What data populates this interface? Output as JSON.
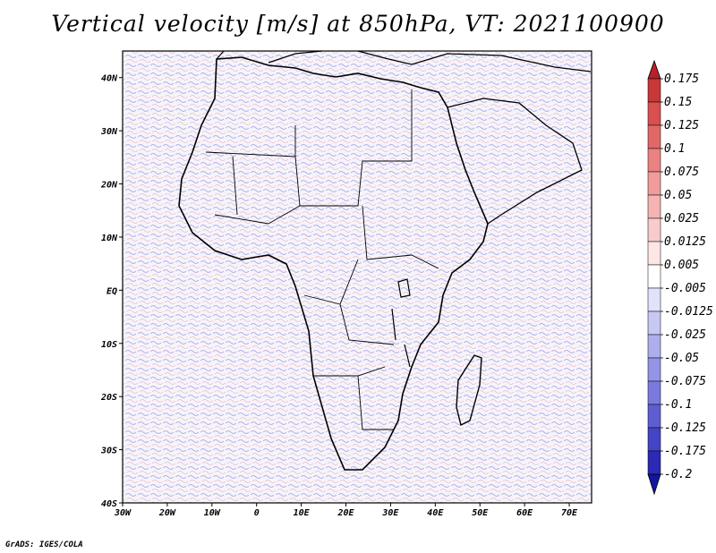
{
  "title": "Vertical velocity [m/s] at 850hPa, VT: 2021100900",
  "footer": "GrADS: IGES/COLA",
  "map": {
    "lat_labels": [
      "40N",
      "30N",
      "20N",
      "10N",
      "EQ",
      "10S",
      "20S",
      "30S",
      "40S"
    ],
    "lon_labels": [
      "30W",
      "20W",
      "10W",
      "0",
      "10E",
      "20E",
      "30E",
      "40E",
      "50E",
      "60E",
      "70E"
    ],
    "lat_range": [
      -40,
      45
    ],
    "lon_range": [
      -30,
      75
    ]
  },
  "colorbar": {
    "labels": [
      "0.175",
      "0.15",
      "0.125",
      "0.1",
      "0.075",
      "0.05",
      "0.025",
      "0.0125",
      "0.005",
      "-0.005",
      "-0.0125",
      "-0.025",
      "-0.05",
      "-0.075",
      "-0.1",
      "-0.125",
      "-0.175",
      "-0.2"
    ],
    "colors": [
      "#b8202a",
      "#c83838",
      "#d85050",
      "#e26868",
      "#ea8282",
      "#f09c9c",
      "#f4b4b4",
      "#f8cccc",
      "#fce6e6",
      "#ffffff",
      "#e2e2fa",
      "#c8c8f4",
      "#aeaeee",
      "#9494e6",
      "#7a7ade",
      "#5e5ed2",
      "#4444c6",
      "#2a2ab4",
      "#1414a0"
    ]
  }
}
